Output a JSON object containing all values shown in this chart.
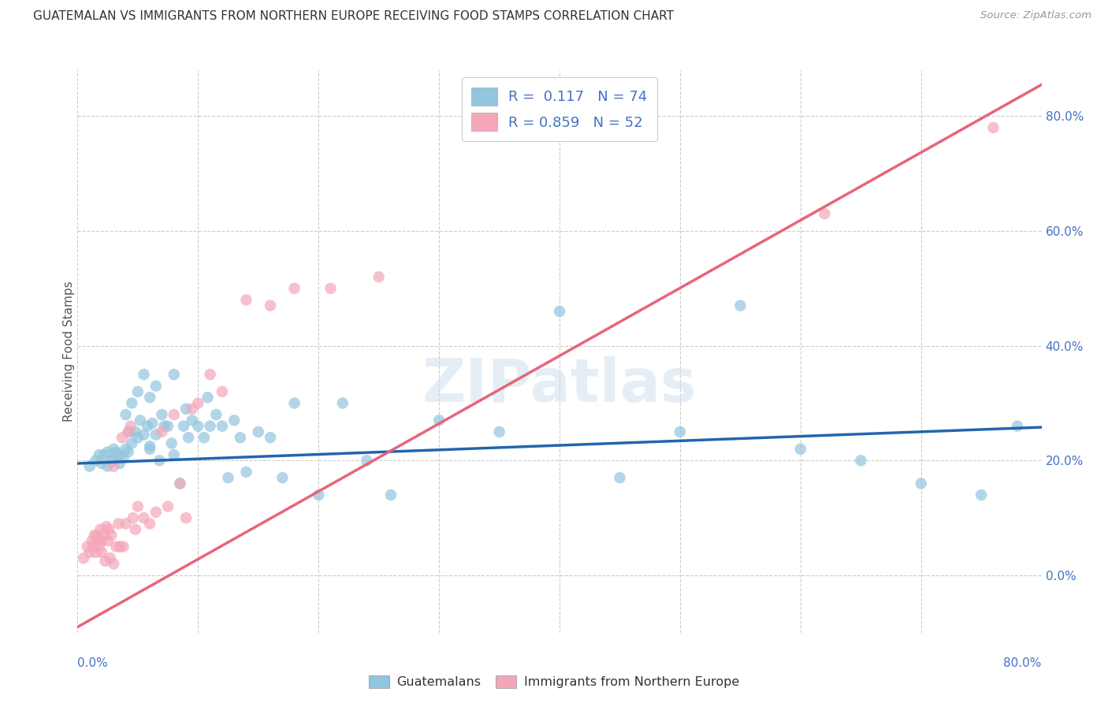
{
  "title": "GUATEMALAN VS IMMIGRANTS FROM NORTHERN EUROPE RECEIVING FOOD STAMPS CORRELATION CHART",
  "source": "Source: ZipAtlas.com",
  "ylabel": "Receiving Food Stamps",
  "color_blue": "#92c5de",
  "color_pink": "#f4a6b8",
  "color_blue_line": "#2166ac",
  "color_pink_line": "#e8647a",
  "color_grid": "#cccccc",
  "watermark": "ZIPatlas",
  "legend_r1": "R =  0.117",
  "legend_n1": "N = 74",
  "legend_r2": "R = 0.859",
  "legend_n2": "N = 52",
  "x_min": 0.0,
  "x_max": 0.8,
  "y_min": -0.1,
  "y_max": 0.88,
  "blue_line_x0": 0.0,
  "blue_line_x1": 0.8,
  "blue_line_y0": 0.195,
  "blue_line_y1": 0.258,
  "pink_line_x0": 0.0,
  "pink_line_x1": 0.8,
  "pink_line_y0": -0.09,
  "pink_line_y1": 0.855,
  "blue_x": [
    0.01,
    0.015,
    0.018,
    0.02,
    0.022,
    0.025,
    0.025,
    0.028,
    0.03,
    0.03,
    0.032,
    0.035,
    0.035,
    0.038,
    0.04,
    0.04,
    0.042,
    0.043,
    0.045,
    0.045,
    0.048,
    0.05,
    0.05,
    0.052,
    0.055,
    0.055,
    0.058,
    0.06,
    0.06,
    0.062,
    0.065,
    0.065,
    0.068,
    0.07,
    0.072,
    0.075,
    0.078,
    0.08,
    0.085,
    0.088,
    0.09,
    0.092,
    0.095,
    0.1,
    0.105,
    0.108,
    0.11,
    0.115,
    0.12,
    0.125,
    0.13,
    0.135,
    0.14,
    0.15,
    0.16,
    0.17,
    0.18,
    0.2,
    0.22,
    0.24,
    0.26,
    0.3,
    0.35,
    0.4,
    0.45,
    0.5,
    0.55,
    0.6,
    0.65,
    0.7,
    0.75,
    0.78,
    0.06,
    0.08
  ],
  "blue_y": [
    0.19,
    0.2,
    0.21,
    0.195,
    0.21,
    0.19,
    0.215,
    0.2,
    0.22,
    0.2,
    0.215,
    0.195,
    0.21,
    0.205,
    0.22,
    0.28,
    0.215,
    0.25,
    0.23,
    0.3,
    0.25,
    0.24,
    0.32,
    0.27,
    0.245,
    0.35,
    0.26,
    0.225,
    0.31,
    0.265,
    0.245,
    0.33,
    0.2,
    0.28,
    0.26,
    0.26,
    0.23,
    0.35,
    0.16,
    0.26,
    0.29,
    0.24,
    0.27,
    0.26,
    0.24,
    0.31,
    0.26,
    0.28,
    0.26,
    0.17,
    0.27,
    0.24,
    0.18,
    0.25,
    0.24,
    0.17,
    0.3,
    0.14,
    0.3,
    0.2,
    0.14,
    0.27,
    0.25,
    0.46,
    0.17,
    0.25,
    0.47,
    0.22,
    0.2,
    0.16,
    0.14,
    0.26,
    0.22,
    0.21
  ],
  "pink_x": [
    0.005,
    0.008,
    0.01,
    0.012,
    0.013,
    0.014,
    0.015,
    0.016,
    0.017,
    0.018,
    0.019,
    0.02,
    0.02,
    0.022,
    0.023,
    0.024,
    0.025,
    0.026,
    0.027,
    0.028,
    0.03,
    0.03,
    0.032,
    0.034,
    0.035,
    0.037,
    0.038,
    0.04,
    0.042,
    0.044,
    0.046,
    0.048,
    0.05,
    0.055,
    0.06,
    0.065,
    0.07,
    0.075,
    0.08,
    0.085,
    0.09,
    0.095,
    0.1,
    0.11,
    0.12,
    0.14,
    0.16,
    0.18,
    0.21,
    0.25,
    0.62,
    0.76
  ],
  "pink_y": [
    0.03,
    0.05,
    0.04,
    0.06,
    0.05,
    0.07,
    0.04,
    0.07,
    0.06,
    0.05,
    0.08,
    0.04,
    0.06,
    0.07,
    0.025,
    0.085,
    0.06,
    0.08,
    0.03,
    0.07,
    0.02,
    0.19,
    0.05,
    0.09,
    0.05,
    0.24,
    0.05,
    0.09,
    0.25,
    0.26,
    0.1,
    0.08,
    0.12,
    0.1,
    0.09,
    0.11,
    0.25,
    0.12,
    0.28,
    0.16,
    0.1,
    0.29,
    0.3,
    0.35,
    0.32,
    0.48,
    0.47,
    0.5,
    0.5,
    0.52,
    0.63,
    0.78
  ],
  "background_color": "#ffffff"
}
